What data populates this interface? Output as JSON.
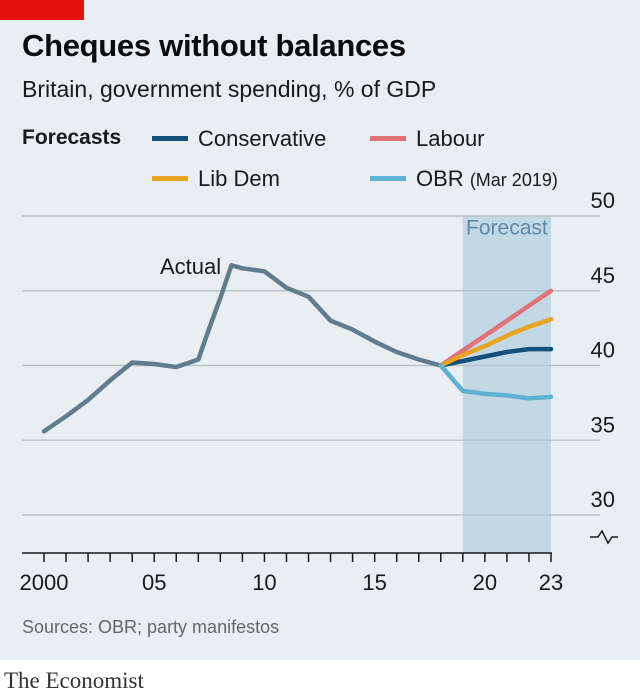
{
  "header": {
    "title": "Cheques without balances",
    "subtitle": "Britain, government spending, % of GDP"
  },
  "legend": {
    "heading": "Forecasts",
    "items": [
      {
        "label": "Conservative",
        "note": "",
        "color": "#14507c"
      },
      {
        "label": "Labour",
        "note": "",
        "color": "#e3717a"
      },
      {
        "label": "Lib Dem",
        "note": "",
        "color": "#e8a31f"
      },
      {
        "label": "OBR",
        "note": "(Mar 2019)",
        "color": "#5fb0d5"
      }
    ]
  },
  "annotations": {
    "actual": "Actual",
    "forecast": "Forecast"
  },
  "source": "Sources: OBR; party manifestos",
  "brand": "The Economist",
  "chart_data": {
    "type": "line",
    "title": "Cheques without balances",
    "subtitle": "Britain, government spending, % of GDP",
    "ylim": [
      30,
      50
    ],
    "yticks": [
      30,
      35,
      40,
      45,
      50
    ],
    "xlim": [
      2000,
      2023
    ],
    "xtick_values": [
      2000,
      2005,
      2010,
      2015,
      2020,
      2023
    ],
    "xtick_labels": [
      "2000",
      "05",
      "10",
      "15",
      "20",
      "23"
    ],
    "forecast_period": [
      2019,
      2023
    ],
    "y_axis_break": true,
    "y_axis_position": "right",
    "grid": true,
    "series": [
      {
        "name": "Actual",
        "color": "#5f7d8c",
        "x": [
          2000,
          2001,
          2002,
          2003,
          2004,
          2005,
          2006,
          2007,
          2007.5,
          2008,
          2008.5,
          2009,
          2010,
          2011,
          2012,
          2013,
          2014,
          2015,
          2016,
          2017,
          2018
        ],
        "y": [
          35.6,
          36.6,
          37.7,
          39.0,
          40.2,
          40.1,
          39.9,
          40.4,
          42.5,
          44.5,
          46.7,
          46.5,
          46.3,
          45.2,
          44.6,
          43.0,
          42.4,
          41.6,
          40.9,
          40.4,
          40.0
        ]
      },
      {
        "name": "Conservative",
        "color": "#14507c",
        "x": [
          2018,
          2019,
          2020,
          2021,
          2022,
          2023
        ],
        "y": [
          40.0,
          40.3,
          40.6,
          40.9,
          41.1,
          41.1
        ]
      },
      {
        "name": "Labour",
        "color": "#e3717a",
        "x": [
          2018,
          2019,
          2020,
          2021,
          2022,
          2023
        ],
        "y": [
          40.0,
          41.0,
          42.0,
          43.0,
          44.0,
          45.0
        ]
      },
      {
        "name": "Lib Dem",
        "color": "#e8a31f",
        "x": [
          2018,
          2019,
          2020,
          2021,
          2022,
          2023
        ],
        "y": [
          40.0,
          40.7,
          41.3,
          42.0,
          42.6,
          43.1
        ]
      },
      {
        "name": "OBR (Mar 2019)",
        "color": "#5fb0d5",
        "x": [
          2018,
          2019,
          2020,
          2021,
          2022,
          2023
        ],
        "y": [
          40.0,
          38.3,
          38.1,
          38.0,
          37.8,
          37.9
        ]
      }
    ]
  }
}
